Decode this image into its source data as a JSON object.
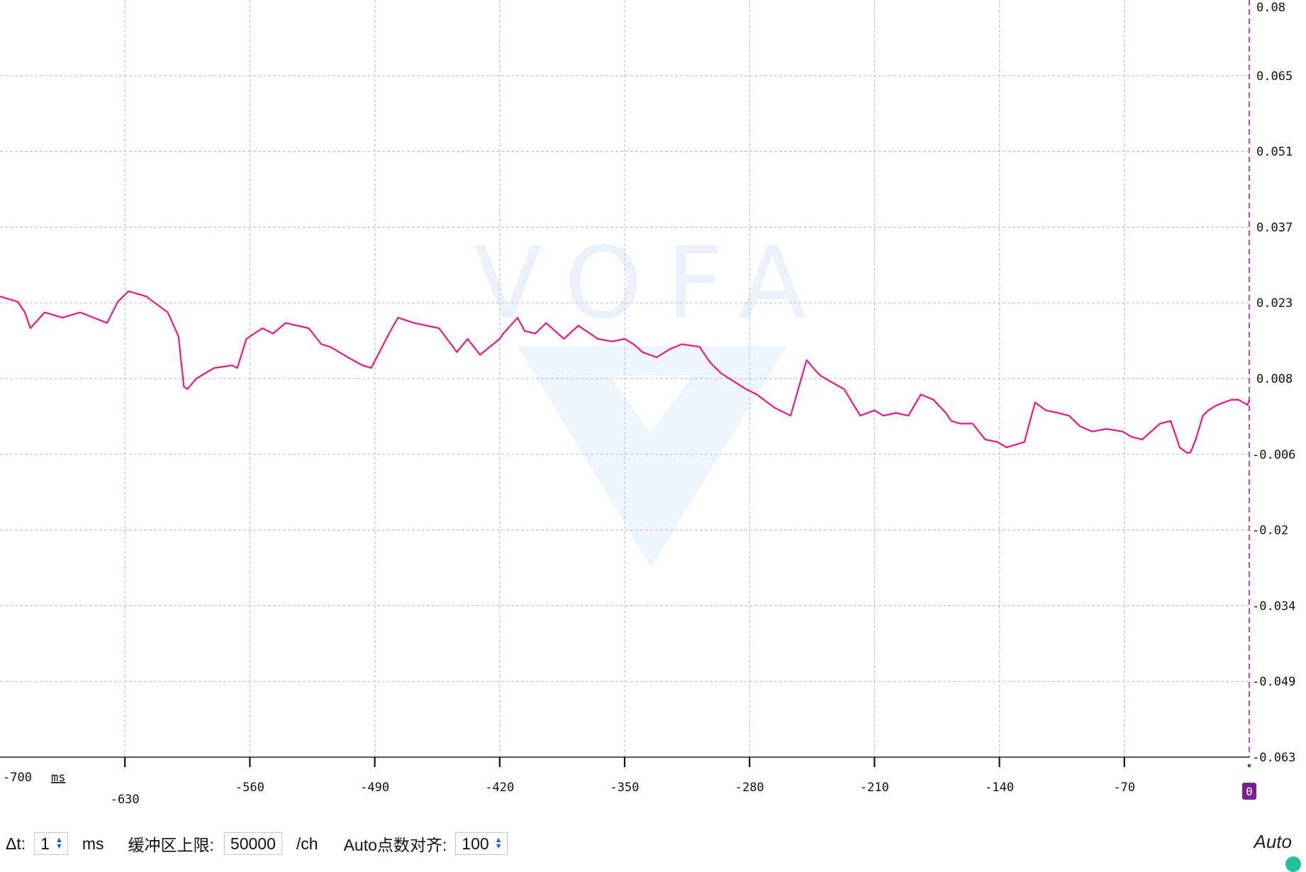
{
  "chart_data": {
    "type": "line",
    "watermark": "VOFA",
    "x_unit": "ms",
    "xlim": [
      -700,
      0
    ],
    "ylim": [
      -0.063,
      0.08
    ],
    "x_ticks": [
      "-700",
      "-630",
      "-560",
      "-490",
      "-420",
      "-350",
      "-280",
      "-210",
      "-140",
      "-70",
      "0"
    ],
    "y_ticks": [
      "0.08",
      "0.065",
      "0.051",
      "0.037",
      "0.023",
      "0.008",
      "-0.006",
      "-0.02",
      "-0.034",
      "-0.049",
      "-0.063"
    ],
    "grid": true,
    "series": [
      {
        "color": "#f0157f",
        "x": [
          -700,
          -690,
          -686,
          -683,
          -675,
          -665,
          -655,
          -640,
          -634,
          -628,
          -618,
          -606,
          -600,
          -597,
          -595,
          -590,
          -585,
          -580,
          -570,
          -567,
          -562,
          -553,
          -547,
          -540,
          -527,
          -520,
          -515,
          -505,
          -497,
          -492,
          -482,
          -477,
          -468,
          -461,
          -454,
          -444,
          -438,
          -431,
          -420,
          -418,
          -410,
          -406,
          -400,
          -394,
          -384,
          -376,
          -365,
          -357,
          -350,
          -345,
          -340,
          -332,
          -325,
          -318,
          -308,
          -302,
          -296,
          -289,
          -282,
          -276,
          -266,
          -257,
          -248,
          -243,
          -240,
          -235,
          -227,
          -218,
          -210,
          -205,
          -198,
          -191,
          -184,
          -177,
          -170,
          -167,
          -162,
          -155,
          -148,
          -141,
          -136,
          -126,
          -120,
          -114,
          -107,
          -101,
          -95,
          -88,
          -80,
          -71,
          -66,
          -60,
          -50,
          -44,
          -39,
          -35,
          -33,
          -30,
          -26,
          -23,
          -18,
          -10,
          -6,
          -1,
          0
        ],
        "y": [
          0.024,
          0.023,
          0.021,
          0.018,
          0.021,
          0.02,
          0.021,
          0.019,
          0.023,
          0.025,
          0.024,
          0.021,
          0.0165,
          0.007,
          0.0065,
          0.0085,
          0.0095,
          0.0105,
          0.011,
          0.0105,
          0.016,
          0.018,
          0.017,
          0.019,
          0.018,
          0.015,
          0.0145,
          0.0125,
          0.011,
          0.0105,
          0.017,
          0.02,
          0.019,
          0.0185,
          0.018,
          0.0135,
          0.016,
          0.013,
          0.016,
          0.017,
          0.02,
          0.0175,
          0.017,
          0.019,
          0.016,
          0.0185,
          0.016,
          0.0155,
          0.016,
          0.015,
          0.0135,
          0.0125,
          0.014,
          0.015,
          0.0145,
          0.0115,
          0.0095,
          0.008,
          0.0065,
          0.0055,
          0.003,
          0.0015,
          0.012,
          0.01,
          0.009,
          0.008,
          0.0065,
          0.0015,
          0.0025,
          0.0015,
          0.002,
          0.0015,
          0.0055,
          0.0045,
          0.002,
          0.0005,
          0.0,
          0.0,
          -0.003,
          -0.0035,
          -0.0045,
          -0.0035,
          0.004,
          0.0025,
          0.002,
          0.0015,
          -0.0005,
          -0.0015,
          -0.001,
          -0.0015,
          -0.0025,
          -0.003,
          0.0,
          0.0005,
          -0.0045,
          -0.0055,
          -0.0055,
          -0.003,
          0.0015,
          0.0025,
          0.0035,
          0.0045,
          0.0045,
          0.0035,
          0.0045
        ]
      }
    ]
  },
  "controls": {
    "dt_label": "Δt:",
    "dt_value": "1",
    "dt_unit": "ms",
    "buffer_label": "缓冲区上限:",
    "buffer_value": "50000",
    "buffer_unit": "/ch",
    "auto_points_label": "Auto点数对齐:",
    "auto_points_value": "100",
    "mode_indicator": "Auto"
  }
}
